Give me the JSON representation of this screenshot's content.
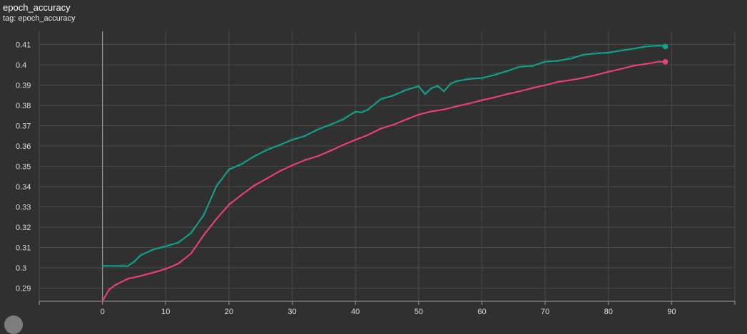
{
  "header": {
    "title": "epoch_accuracy",
    "subtitle": "tag: epoch_accuracy"
  },
  "colors": {
    "background": "#303030",
    "grid": "#4a4a4a",
    "axis": "#9a9a9a",
    "series_teal": "#12a38f",
    "series_pink": "#ef3f7d"
  },
  "chart_data": {
    "type": "line",
    "title": "epoch_accuracy",
    "xlabel": "",
    "ylabel": "",
    "xlim": [
      -10,
      100
    ],
    "ylim": [
      0.2835,
      0.4165
    ],
    "x_ticks": [
      0,
      10,
      20,
      30,
      40,
      50,
      60,
      70,
      80,
      90
    ],
    "y_ticks": [
      0.29,
      0.3,
      0.31,
      0.32,
      0.33,
      0.34,
      0.35,
      0.36,
      0.37,
      0.38,
      0.39,
      0.4,
      0.41
    ],
    "y_tick_labels": [
      "0.29",
      "0.3",
      "0.31",
      "0.32",
      "0.33",
      "0.34",
      "0.35",
      "0.36",
      "0.37",
      "0.38",
      "0.39",
      "0.4",
      "0.41"
    ],
    "grid": true,
    "legend": "none",
    "series": [
      {
        "color": "#12a38f",
        "x": [
          0,
          4,
          5,
          6,
          8,
          10,
          12,
          14,
          16,
          18,
          20,
          22,
          24,
          26,
          28,
          30,
          32,
          34,
          36,
          38,
          40,
          41,
          42,
          44,
          46,
          48,
          50,
          51,
          52,
          53,
          54,
          55,
          56,
          58,
          60,
          62,
          64,
          66,
          68,
          70,
          72,
          74,
          76,
          78,
          80,
          82,
          84,
          86,
          88,
          89
        ],
        "values": [
          0.301,
          0.3008,
          0.303,
          0.306,
          0.309,
          0.3105,
          0.3125,
          0.317,
          0.326,
          0.34,
          0.3485,
          0.351,
          0.355,
          0.358,
          0.3605,
          0.363,
          0.365,
          0.368,
          0.3705,
          0.373,
          0.377,
          0.3765,
          0.378,
          0.383,
          0.385,
          0.3875,
          0.3895,
          0.3855,
          0.3885,
          0.3895,
          0.387,
          0.3905,
          0.392,
          0.393,
          0.3935,
          0.395,
          0.397,
          0.399,
          0.3995,
          0.4015,
          0.402,
          0.403,
          0.405,
          0.4055,
          0.406,
          0.407,
          0.408,
          0.409,
          0.4095,
          0.409
        ]
      },
      {
        "color": "#ef3f7d",
        "x": [
          0,
          1,
          2,
          4,
          6,
          8,
          10,
          12,
          14,
          16,
          18,
          20,
          22,
          24,
          26,
          28,
          30,
          32,
          34,
          36,
          38,
          40,
          42,
          44,
          46,
          48,
          50,
          52,
          54,
          56,
          58,
          60,
          62,
          64,
          66,
          68,
          70,
          72,
          74,
          76,
          78,
          80,
          82,
          84,
          86,
          88,
          89
        ],
        "values": [
          0.2835,
          0.289,
          0.2915,
          0.2945,
          0.296,
          0.2975,
          0.2995,
          0.302,
          0.307,
          0.316,
          0.324,
          0.331,
          0.336,
          0.3405,
          0.344,
          0.3475,
          0.3505,
          0.353,
          0.355,
          0.3575,
          0.3605,
          0.363,
          0.3655,
          0.3685,
          0.3705,
          0.373,
          0.3755,
          0.377,
          0.378,
          0.3795,
          0.381,
          0.3825,
          0.384,
          0.3855,
          0.387,
          0.3885,
          0.39,
          0.3915,
          0.3925,
          0.3935,
          0.395,
          0.3965,
          0.398,
          0.3995,
          0.4005,
          0.4015,
          0.4015
        ]
      }
    ]
  }
}
